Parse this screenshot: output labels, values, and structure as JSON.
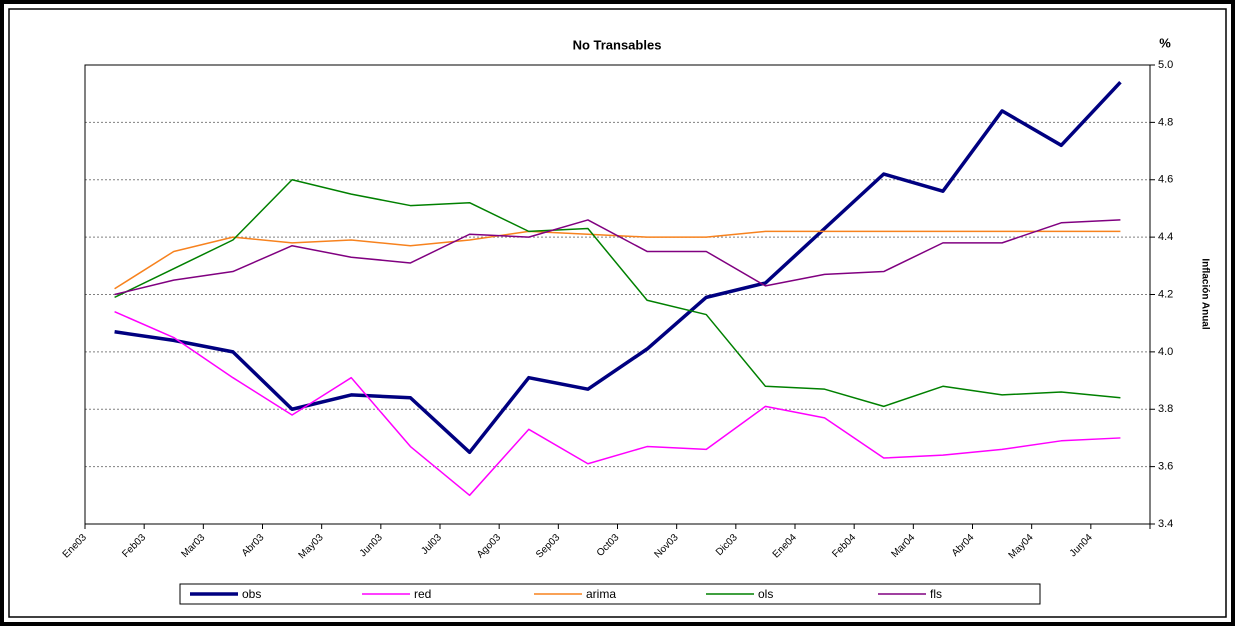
{
  "chart_data": {
    "type": "line",
    "title": "No Transables",
    "y_unit": "%",
    "ylabel": "Inflación Anual",
    "categories": [
      "Ene03",
      "Feb03",
      "Mar03",
      "Abr03",
      "May03",
      "Jun03",
      "Jul03",
      "Ago03",
      "Sep03",
      "Oct03",
      "Nov03",
      "Dic03",
      "Ene04",
      "Feb04",
      "Mar04",
      "Abr04",
      "May04",
      "Jun04"
    ],
    "series": [
      {
        "name": "obs",
        "color": "#000080",
        "values": [
          4.07,
          4.04,
          4.0,
          3.8,
          3.85,
          3.84,
          3.65,
          3.91,
          3.87,
          4.01,
          4.19,
          4.24,
          4.43,
          4.62,
          4.56,
          4.84,
          4.72,
          4.94
        ]
      },
      {
        "name": "red",
        "color": "#ff00ff",
        "values": [
          4.14,
          4.05,
          3.91,
          3.78,
          3.91,
          3.67,
          3.5,
          3.73,
          3.61,
          3.67,
          3.66,
          3.81,
          3.77,
          3.63,
          3.64,
          3.66,
          3.69,
          3.7
        ]
      },
      {
        "name": "arima",
        "color": "#f7821e",
        "values": [
          4.22,
          4.35,
          4.4,
          4.38,
          4.39,
          4.37,
          4.39,
          4.42,
          4.41,
          4.4,
          4.4,
          4.42,
          4.42,
          4.42,
          4.42,
          4.42,
          4.42,
          4.42
        ]
      },
      {
        "name": "ols",
        "color": "#008000",
        "values": [
          4.19,
          4.29,
          4.39,
          4.6,
          4.55,
          4.51,
          4.52,
          4.42,
          4.43,
          4.18,
          4.13,
          3.88,
          3.87,
          3.81,
          3.88,
          3.85,
          3.86,
          3.84
        ]
      },
      {
        "name": "fls",
        "color": "#800080",
        "values": [
          4.2,
          4.25,
          4.28,
          4.37,
          4.33,
          4.31,
          4.41,
          4.4,
          4.46,
          4.35,
          4.35,
          4.23,
          4.27,
          4.28,
          4.38,
          4.38,
          4.45,
          4.46
        ]
      }
    ],
    "ylim": [
      3.4,
      5.0
    ],
    "yticks": [
      {
        "value": 3.4,
        "label": "3.4"
      },
      3.6,
      3.8,
      {
        "value": 4.0,
        "label": "4.0"
      },
      4.2,
      4.4,
      4.6,
      4.8,
      {
        "value": 5.0,
        "label": "5.0"
      }
    ],
    "grid": true,
    "legend": "bottom"
  }
}
